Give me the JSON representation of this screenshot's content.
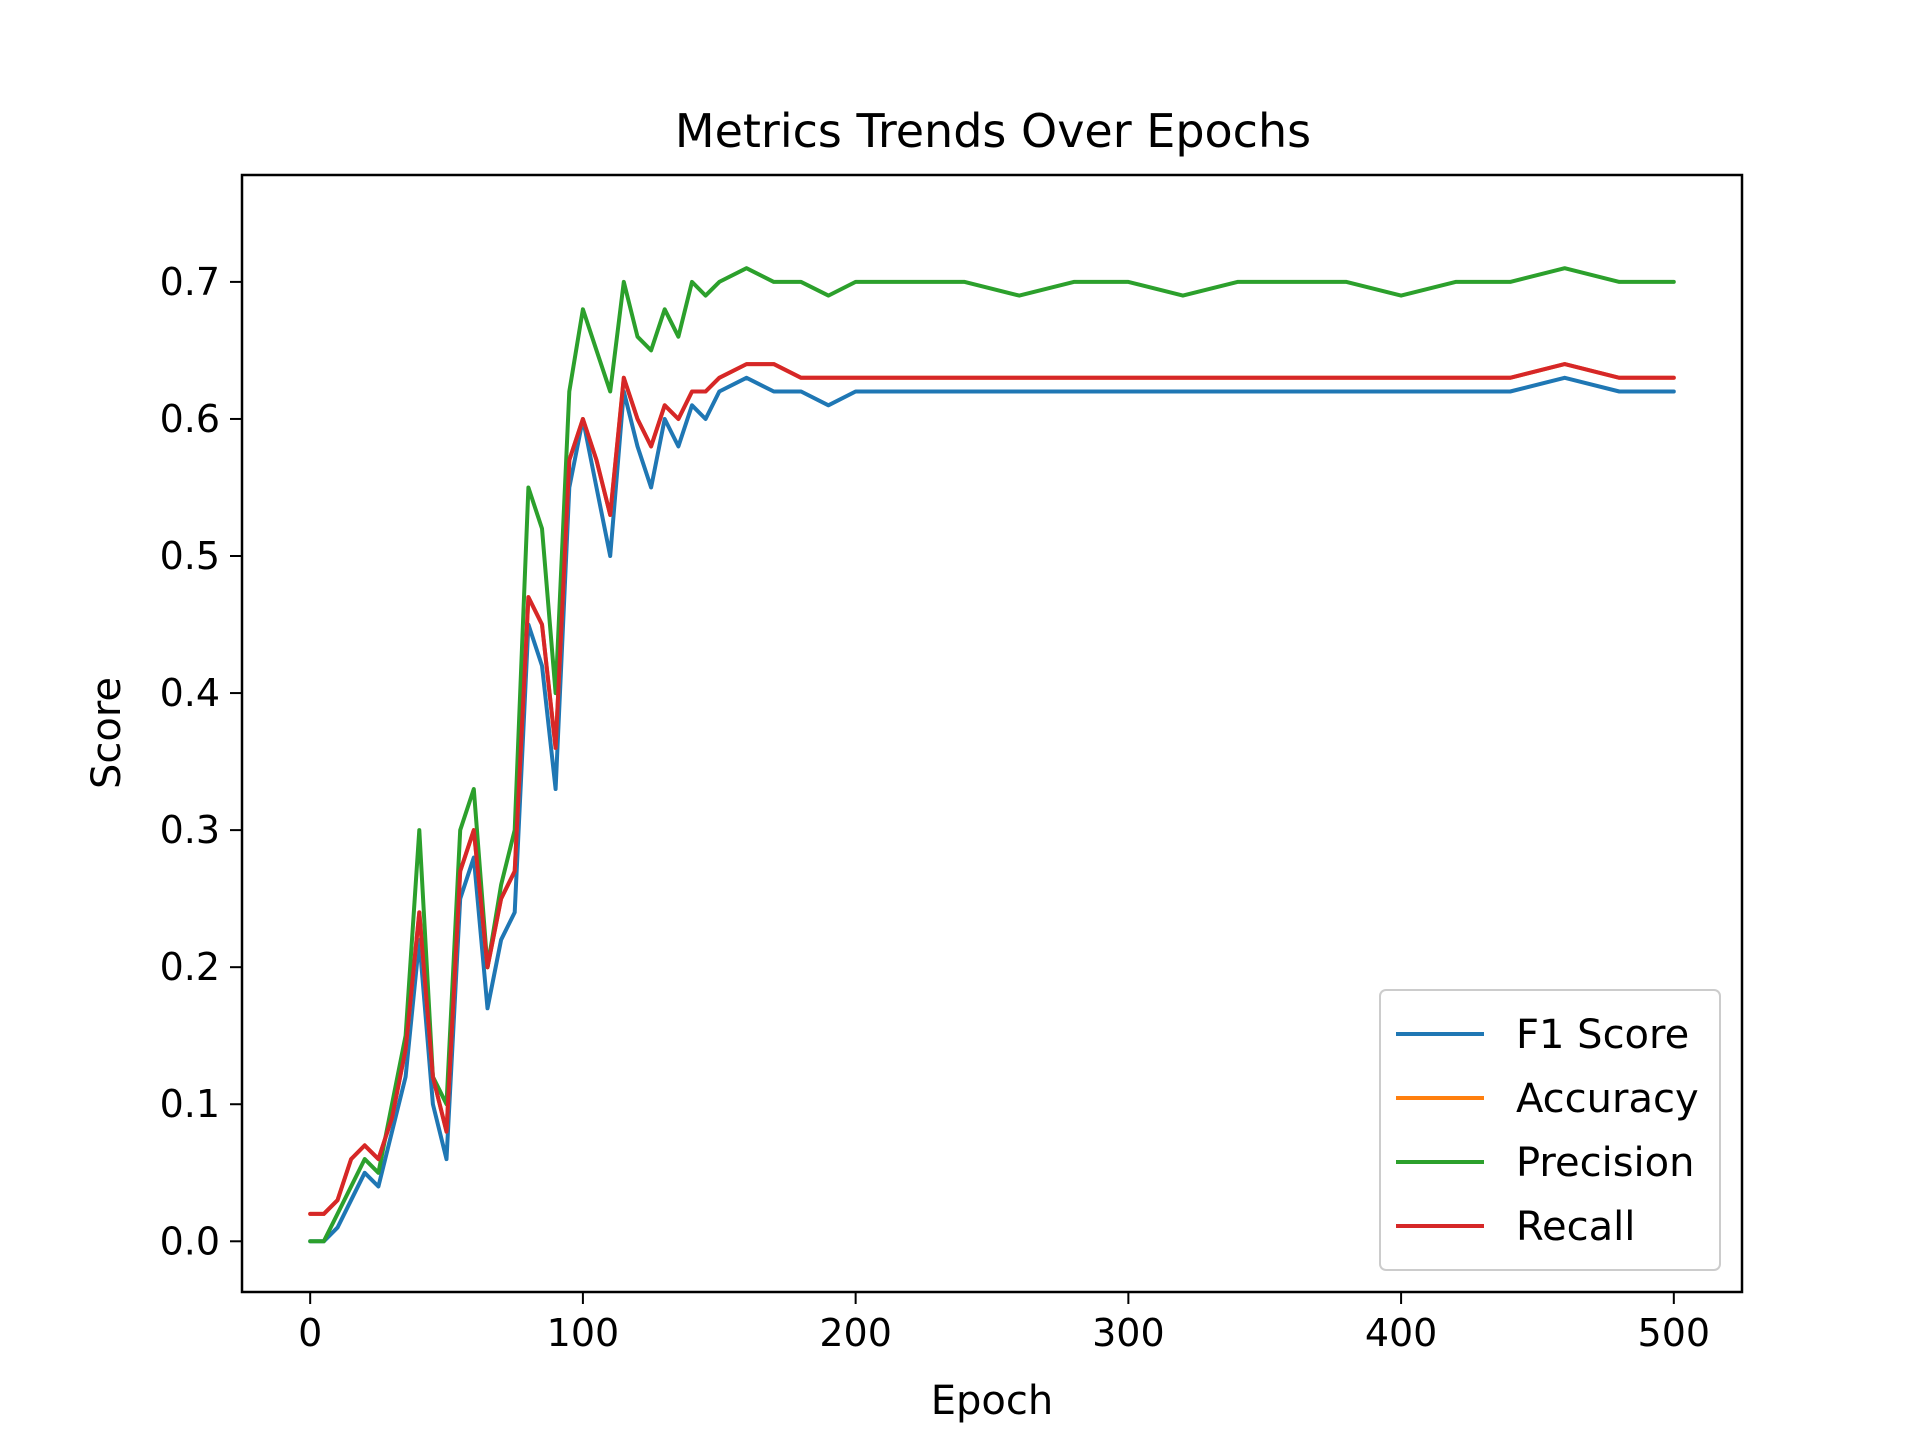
{
  "chart_data": {
    "type": "line",
    "title": "Metrics Trends Over Epochs",
    "xlabel": "Epoch",
    "ylabel": "Score",
    "xlim": [
      -25,
      525
    ],
    "ylim": [
      -0.037,
      0.778
    ],
    "xticks": [
      0,
      100,
      200,
      300,
      400,
      500
    ],
    "yticks": [
      0.0,
      0.1,
      0.2,
      0.3,
      0.4,
      0.5,
      0.6,
      0.7
    ],
    "grid": false,
    "legend_position": "lower-right",
    "x": [
      0,
      5,
      10,
      15,
      20,
      25,
      30,
      35,
      40,
      45,
      50,
      55,
      60,
      65,
      70,
      75,
      80,
      85,
      90,
      95,
      100,
      105,
      110,
      115,
      120,
      125,
      130,
      135,
      140,
      145,
      150,
      160,
      170,
      180,
      190,
      200,
      220,
      240,
      260,
      280,
      300,
      320,
      340,
      360,
      380,
      400,
      420,
      440,
      460,
      480,
      500
    ],
    "series": [
      {
        "name": "F1 Score",
        "color": "#1f77b4",
        "values": [
          0.0,
          0.0,
          0.01,
          0.03,
          0.05,
          0.04,
          0.08,
          0.12,
          0.22,
          0.1,
          0.06,
          0.25,
          0.28,
          0.17,
          0.22,
          0.24,
          0.45,
          0.42,
          0.33,
          0.55,
          0.6,
          0.55,
          0.5,
          0.62,
          0.58,
          0.55,
          0.6,
          0.58,
          0.61,
          0.6,
          0.62,
          0.63,
          0.62,
          0.62,
          0.61,
          0.62,
          0.62,
          0.62,
          0.62,
          0.62,
          0.62,
          0.62,
          0.62,
          0.62,
          0.62,
          0.62,
          0.62,
          0.62,
          0.63,
          0.62,
          0.62
        ]
      },
      {
        "name": "Accuracy",
        "color": "#ff7f0e",
        "values": [
          0.02,
          0.02,
          0.03,
          0.06,
          0.07,
          0.06,
          0.09,
          0.14,
          0.24,
          0.12,
          0.08,
          0.27,
          0.3,
          0.2,
          0.25,
          0.27,
          0.47,
          0.45,
          0.36,
          0.57,
          0.6,
          0.57,
          0.53,
          0.63,
          0.6,
          0.58,
          0.61,
          0.6,
          0.62,
          0.62,
          0.63,
          0.64,
          0.64,
          0.63,
          0.63,
          0.63,
          0.63,
          0.63,
          0.63,
          0.63,
          0.63,
          0.63,
          0.63,
          0.63,
          0.63,
          0.63,
          0.63,
          0.63,
          0.64,
          0.63,
          0.63
        ]
      },
      {
        "name": "Precision",
        "color": "#2ca02c",
        "values": [
          0.0,
          0.0,
          0.02,
          0.04,
          0.06,
          0.05,
          0.1,
          0.15,
          0.3,
          0.12,
          0.1,
          0.3,
          0.33,
          0.2,
          0.26,
          0.3,
          0.55,
          0.52,
          0.4,
          0.62,
          0.68,
          0.65,
          0.62,
          0.7,
          0.66,
          0.65,
          0.68,
          0.66,
          0.7,
          0.69,
          0.7,
          0.71,
          0.7,
          0.7,
          0.69,
          0.7,
          0.7,
          0.7,
          0.69,
          0.7,
          0.7,
          0.69,
          0.7,
          0.7,
          0.7,
          0.69,
          0.7,
          0.7,
          0.71,
          0.7,
          0.7
        ]
      },
      {
        "name": "Recall",
        "color": "#d62728",
        "values": [
          0.02,
          0.02,
          0.03,
          0.06,
          0.07,
          0.06,
          0.09,
          0.14,
          0.24,
          0.12,
          0.08,
          0.27,
          0.3,
          0.2,
          0.25,
          0.27,
          0.47,
          0.45,
          0.36,
          0.57,
          0.6,
          0.57,
          0.53,
          0.63,
          0.6,
          0.58,
          0.61,
          0.6,
          0.62,
          0.62,
          0.63,
          0.64,
          0.64,
          0.63,
          0.63,
          0.63,
          0.63,
          0.63,
          0.63,
          0.63,
          0.63,
          0.63,
          0.63,
          0.63,
          0.63,
          0.63,
          0.63,
          0.63,
          0.64,
          0.63,
          0.63
        ]
      }
    ]
  }
}
